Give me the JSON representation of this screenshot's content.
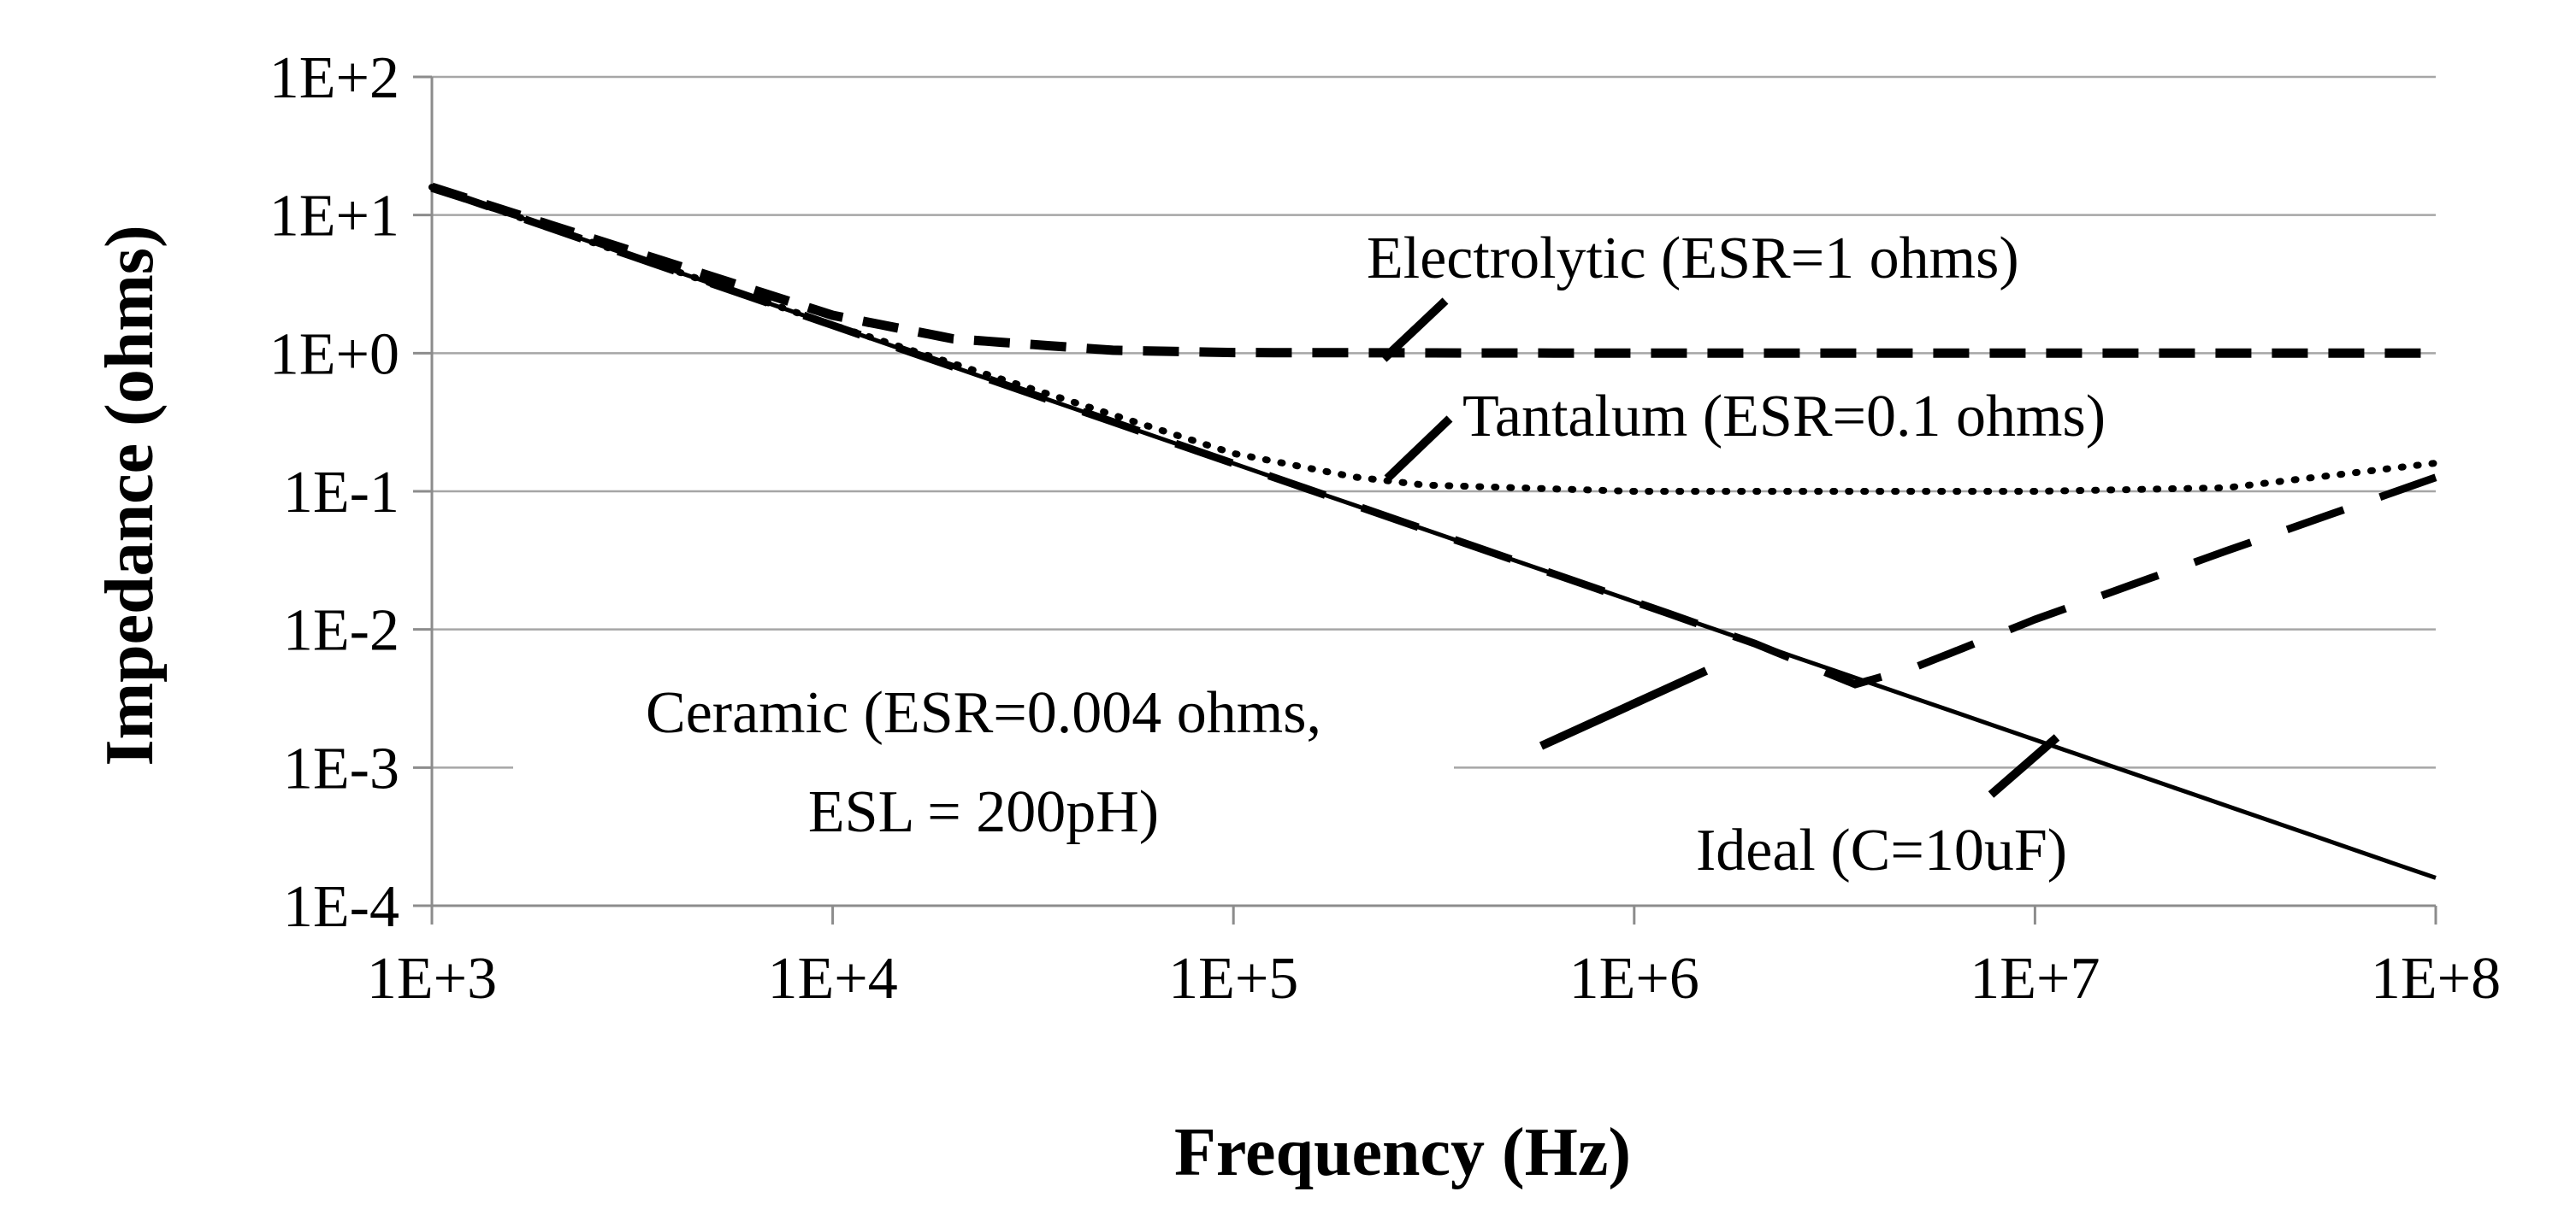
{
  "chart_data": {
    "type": "line",
    "title": "",
    "xlabel": "Frequency (Hz)",
    "ylabel": "Impedance (ohms)",
    "x_scale": "log",
    "y_scale": "log",
    "xlim": [
      1000,
      100000000
    ],
    "ylim": [
      0.0001,
      100
    ],
    "grid": "horizontal",
    "legend": "none (direct labels)",
    "x_ticks": [
      "1E+3",
      "1E+4",
      "1E+5",
      "1E+6",
      "1E+7",
      "1E+8"
    ],
    "y_ticks": [
      "1E+2",
      "1E+1",
      "1E+0",
      "1E-1",
      "1E-2",
      "1E-3",
      "1E-4"
    ],
    "series": [
      {
        "name": "Ideal (C=10uF)",
        "style": "solid",
        "x": [
          1000,
          10000,
          100000,
          1000000,
          10000000,
          100000000
        ],
        "y": [
          15.9,
          1.59,
          0.159,
          0.0159,
          0.00159,
          0.000159
        ]
      },
      {
        "name": "Ceramic (ESR=0.004 ohms, ESL = 200pH)",
        "style": "dashed",
        "x": [
          1000,
          10000,
          100000,
          1000000,
          2000000,
          3560000,
          5000000,
          10000000,
          30000000,
          100000000
        ],
        "y": [
          15.9,
          1.59,
          0.159,
          0.0159,
          0.0079,
          0.004,
          0.0053,
          0.0118,
          0.037,
          0.126
        ]
      },
      {
        "name": "Tantalum (ESR=0.1 ohms)",
        "style": "dotted",
        "x": [
          1000,
          10000,
          100000,
          200000,
          300000,
          1000000,
          10000000,
          30000000,
          100000000
        ],
        "y": [
          15.9,
          1.6,
          0.188,
          0.127,
          0.111,
          0.1,
          0.1,
          0.106,
          0.16
        ]
      },
      {
        "name": "Electrolytic (ESR=1 ohms)",
        "style": "dashed-heavy",
        "x": [
          1000,
          10000,
          20000,
          50000,
          100000,
          1000000,
          100000000
        ],
        "y": [
          15.9,
          1.88,
          1.27,
          1.05,
          1.01,
          1.0,
          1.0
        ]
      }
    ],
    "annotations": [
      {
        "text": "Electrolytic (ESR=1 ohms)",
        "x": 250000,
        "y": 1.0
      },
      {
        "text": "Tantalum (ESR=0.1 ohms)",
        "x": 250000,
        "y": 0.115
      },
      {
        "text_line1": "Ceramic (ESR=0.004 ohms,",
        "text_line2": "ESL = 200pH)",
        "x": 1500000,
        "y": 0.0075
      },
      {
        "text": "Ideal (C=10uF)",
        "x": 11000000,
        "y": 0.0016
      }
    ]
  }
}
